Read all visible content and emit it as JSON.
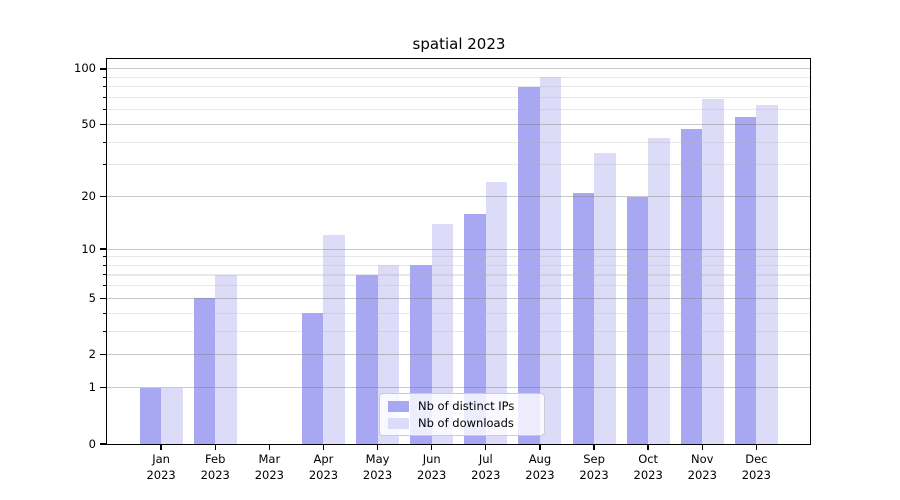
{
  "chart_data": {
    "type": "bar",
    "title": "spatial 2023",
    "categories": [
      "Jan 2023",
      "Feb 2023",
      "Mar 2023",
      "Apr 2023",
      "May 2023",
      "Jun 2023",
      "Jul 2023",
      "Aug 2023",
      "Sep 2023",
      "Oct 2023",
      "Nov 2023",
      "Dec 2023"
    ],
    "x_tick_line1": [
      "Jan",
      "Feb",
      "Mar",
      "Apr",
      "May",
      "Jun",
      "Jul",
      "Aug",
      "Sep",
      "Oct",
      "Nov",
      "Dec"
    ],
    "x_tick_line2": "2023",
    "series": [
      {
        "name": "Nb of distinct IPs",
        "color": "#a7a7f2",
        "values": [
          1,
          5,
          0,
          4,
          7,
          8,
          16,
          80,
          21,
          20,
          47,
          55
        ]
      },
      {
        "name": "Nb of downloads",
        "color": "#dcdcf8",
        "values": [
          1,
          7,
          0,
          12,
          8,
          14,
          24,
          90,
          35,
          42,
          69,
          64
        ]
      }
    ],
    "yscale": "log1p",
    "ylim": [
      0,
      113
    ],
    "yticks": [
      0,
      1,
      2,
      5,
      10,
      20,
      50,
      100
    ],
    "ytick_labels": [
      "0",
      "1",
      "2",
      "5",
      "10",
      "20",
      "50",
      "100"
    ],
    "yticks_minor": [
      3,
      4,
      6,
      7,
      8,
      9,
      30,
      40,
      60,
      70,
      80,
      90
    ],
    "grid": true,
    "legend_position": "lower center",
    "xlabel": "",
    "ylabel": ""
  }
}
